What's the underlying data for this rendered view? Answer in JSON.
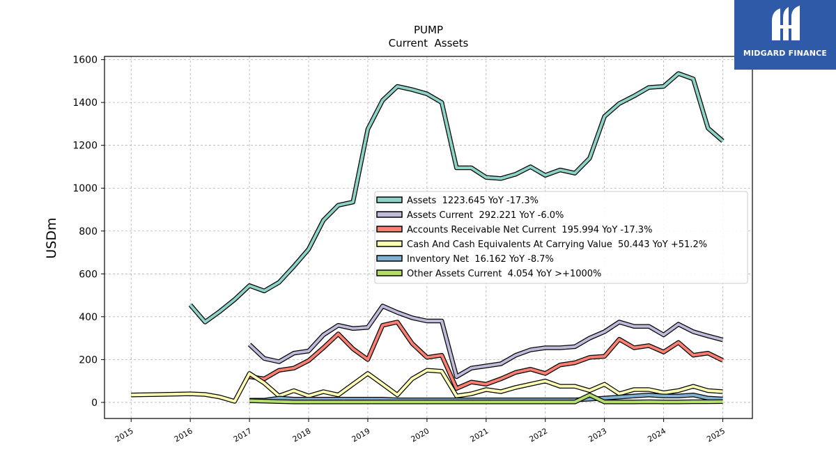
{
  "brand": {
    "name": "MIDGARD FINANCE",
    "icon": "mf-logo-icon",
    "color": "#2f5aa8"
  },
  "chart_data": {
    "type": "line",
    "title": "PUMP",
    "subtitle": "Current  Assets",
    "ylabel": "USDm",
    "xlabel": "",
    "xlim": [
      2014.55,
      2025.5
    ],
    "ylim": [
      -75,
      1615
    ],
    "yticks": [
      0,
      200,
      400,
      600,
      800,
      1000,
      1200,
      1400,
      1600
    ],
    "xticks": [
      2015,
      2016,
      2017,
      2018,
      2019,
      2020,
      2021,
      2022,
      2023,
      2024,
      2025
    ],
    "grid": true,
    "legend_position": "center-right",
    "series": [
      {
        "name": "Assets",
        "legend": "Assets  1223.645 YoY -17.3%",
        "color": "#8dd3c7",
        "points": [
          [
            2016.0,
            455
          ],
          [
            2016.25,
            375
          ],
          [
            2016.5,
            425
          ],
          [
            2016.75,
            480
          ],
          [
            2017.0,
            545
          ],
          [
            2017.25,
            520
          ],
          [
            2017.5,
            560
          ],
          [
            2017.75,
            635
          ],
          [
            2018.0,
            715
          ],
          [
            2018.25,
            850
          ],
          [
            2018.5,
            920
          ],
          [
            2018.75,
            935
          ],
          [
            2019.0,
            1275
          ],
          [
            2019.25,
            1410
          ],
          [
            2019.5,
            1475
          ],
          [
            2019.75,
            1460
          ],
          [
            2020.0,
            1440
          ],
          [
            2020.25,
            1400
          ],
          [
            2020.5,
            1095
          ],
          [
            2020.75,
            1095
          ],
          [
            2021.0,
            1050
          ],
          [
            2021.25,
            1045
          ],
          [
            2021.5,
            1065
          ],
          [
            2021.75,
            1100
          ],
          [
            2022.0,
            1060
          ],
          [
            2022.25,
            1085
          ],
          [
            2022.5,
            1070
          ],
          [
            2022.75,
            1140
          ],
          [
            2023.0,
            1335
          ],
          [
            2023.25,
            1395
          ],
          [
            2023.5,
            1430
          ],
          [
            2023.75,
            1470
          ],
          [
            2024.0,
            1475
          ],
          [
            2024.25,
            1535
          ],
          [
            2024.5,
            1510
          ],
          [
            2024.75,
            1280
          ],
          [
            2025.0,
            1220
          ]
        ]
      },
      {
        "name": "Assets Current",
        "legend": "Assets Current  292.221 YoY -6.0%",
        "color": "#bebada",
        "points": [
          [
            2017.0,
            270
          ],
          [
            2017.25,
            205
          ],
          [
            2017.5,
            190
          ],
          [
            2017.75,
            230
          ],
          [
            2018.0,
            240
          ],
          [
            2018.25,
            315
          ],
          [
            2018.5,
            360
          ],
          [
            2018.75,
            345
          ],
          [
            2019.0,
            350
          ],
          [
            2019.25,
            450
          ],
          [
            2019.5,
            420
          ],
          [
            2019.75,
            395
          ],
          [
            2020.0,
            380
          ],
          [
            2020.25,
            380
          ],
          [
            2020.5,
            120
          ],
          [
            2020.75,
            160
          ],
          [
            2021.0,
            170
          ],
          [
            2021.25,
            180
          ],
          [
            2021.5,
            220
          ],
          [
            2021.75,
            245
          ],
          [
            2022.0,
            255
          ],
          [
            2022.25,
            255
          ],
          [
            2022.5,
            260
          ],
          [
            2022.75,
            300
          ],
          [
            2023.0,
            330
          ],
          [
            2023.25,
            375
          ],
          [
            2023.5,
            355
          ],
          [
            2023.75,
            355
          ],
          [
            2024.0,
            315
          ],
          [
            2024.25,
            365
          ],
          [
            2024.5,
            330
          ],
          [
            2024.75,
            310
          ],
          [
            2025.0,
            292
          ]
        ]
      },
      {
        "name": "Accounts Receivable Net Current",
        "legend": "Accounts Receivable Net Current  195.994 YoY -17.3%",
        "color": "#fb8072",
        "points": [
          [
            2017.0,
            120
          ],
          [
            2017.25,
            110
          ],
          [
            2017.5,
            150
          ],
          [
            2017.75,
            160
          ],
          [
            2018.0,
            195
          ],
          [
            2018.25,
            255
          ],
          [
            2018.5,
            320
          ],
          [
            2018.75,
            250
          ],
          [
            2019.0,
            200
          ],
          [
            2019.25,
            360
          ],
          [
            2019.5,
            375
          ],
          [
            2019.75,
            275
          ],
          [
            2020.0,
            210
          ],
          [
            2020.25,
            220
          ],
          [
            2020.5,
            65
          ],
          [
            2020.75,
            95
          ],
          [
            2021.0,
            85
          ],
          [
            2021.25,
            110
          ],
          [
            2021.5,
            140
          ],
          [
            2021.75,
            155
          ],
          [
            2022.0,
            135
          ],
          [
            2022.25,
            175
          ],
          [
            2022.5,
            185
          ],
          [
            2022.75,
            210
          ],
          [
            2023.0,
            215
          ],
          [
            2023.25,
            295
          ],
          [
            2023.5,
            255
          ],
          [
            2023.75,
            265
          ],
          [
            2024.0,
            235
          ],
          [
            2024.25,
            280
          ],
          [
            2024.5,
            220
          ],
          [
            2024.75,
            230
          ],
          [
            2025.0,
            196
          ]
        ]
      },
      {
        "name": "Cash And Cash Equivalents At Carrying Value",
        "legend": "Cash And Cash Equivalents At Carrying Value  50.443 YoY +51.2%",
        "color": "#ffffb3",
        "points": [
          [
            2015.0,
            35
          ],
          [
            2015.5,
            37
          ],
          [
            2016.0,
            40
          ],
          [
            2016.25,
            37
          ],
          [
            2016.5,
            25
          ],
          [
            2016.75,
            5
          ],
          [
            2017.0,
            135
          ],
          [
            2017.25,
            90
          ],
          [
            2017.5,
            30
          ],
          [
            2017.75,
            55
          ],
          [
            2018.0,
            30
          ],
          [
            2018.25,
            50
          ],
          [
            2018.5,
            35
          ],
          [
            2018.75,
            85
          ],
          [
            2019.0,
            135
          ],
          [
            2019.25,
            85
          ],
          [
            2019.5,
            35
          ],
          [
            2019.75,
            110
          ],
          [
            2020.0,
            150
          ],
          [
            2020.25,
            145
          ],
          [
            2020.5,
            30
          ],
          [
            2020.75,
            40
          ],
          [
            2021.0,
            60
          ],
          [
            2021.25,
            50
          ],
          [
            2021.5,
            70
          ],
          [
            2021.75,
            85
          ],
          [
            2022.0,
            100
          ],
          [
            2022.25,
            75
          ],
          [
            2022.5,
            75
          ],
          [
            2022.75,
            55
          ],
          [
            2023.0,
            85
          ],
          [
            2023.25,
            40
          ],
          [
            2023.5,
            60
          ],
          [
            2023.75,
            60
          ],
          [
            2024.0,
            45
          ],
          [
            2024.25,
            55
          ],
          [
            2024.5,
            75
          ],
          [
            2024.75,
            55
          ],
          [
            2025.0,
            50
          ]
        ]
      },
      {
        "name": "Inventory Net",
        "legend": "Inventory Net  16.162 YoY -8.7%",
        "color": "#80b1d3",
        "points": [
          [
            2017.0,
            10
          ],
          [
            2017.25,
            10
          ],
          [
            2017.5,
            20
          ],
          [
            2017.75,
            15
          ],
          [
            2018.0,
            15
          ],
          [
            2018.25,
            15
          ],
          [
            2018.5,
            15
          ],
          [
            2018.75,
            15
          ],
          [
            2019.0,
            15
          ],
          [
            2019.25,
            15
          ],
          [
            2019.5,
            12
          ],
          [
            2019.75,
            12
          ],
          [
            2020.0,
            12
          ],
          [
            2020.25,
            12
          ],
          [
            2020.5,
            12
          ],
          [
            2020.75,
            12
          ],
          [
            2021.0,
            12
          ],
          [
            2021.25,
            12
          ],
          [
            2021.5,
            12
          ],
          [
            2021.75,
            12
          ],
          [
            2022.0,
            12
          ],
          [
            2022.25,
            12
          ],
          [
            2022.5,
            12
          ],
          [
            2022.75,
            15
          ],
          [
            2023.0,
            20
          ],
          [
            2023.25,
            25
          ],
          [
            2023.5,
            30
          ],
          [
            2023.75,
            35
          ],
          [
            2024.0,
            30
          ],
          [
            2024.25,
            30
          ],
          [
            2024.5,
            35
          ],
          [
            2024.75,
            20
          ],
          [
            2025.0,
            16
          ]
        ]
      },
      {
        "name": "Other Assets Current",
        "legend": "Other Assets Current  4.054 YoY >+1000%",
        "color": "#b3de69",
        "points": [
          [
            2017.0,
            8
          ],
          [
            2017.25,
            6
          ],
          [
            2017.5,
            4
          ],
          [
            2017.75,
            2
          ],
          [
            2018.0,
            2
          ],
          [
            2018.25,
            2
          ],
          [
            2018.5,
            2
          ],
          [
            2018.75,
            2
          ],
          [
            2019.0,
            2
          ],
          [
            2019.25,
            2
          ],
          [
            2019.5,
            2
          ],
          [
            2019.75,
            2
          ],
          [
            2020.0,
            2
          ],
          [
            2020.25,
            2
          ],
          [
            2020.5,
            2
          ],
          [
            2020.75,
            2
          ],
          [
            2021.0,
            2
          ],
          [
            2021.25,
            2
          ],
          [
            2021.5,
            2
          ],
          [
            2021.75,
            2
          ],
          [
            2022.0,
            2
          ],
          [
            2022.25,
            2
          ],
          [
            2022.5,
            2
          ],
          [
            2022.75,
            35
          ],
          [
            2023.0,
            2
          ],
          [
            2023.25,
            2
          ],
          [
            2023.5,
            2
          ],
          [
            2023.75,
            3
          ],
          [
            2024.0,
            2
          ],
          [
            2024.25,
            2
          ],
          [
            2024.5,
            3
          ],
          [
            2024.75,
            3
          ],
          [
            2025.0,
            4
          ]
        ]
      }
    ]
  }
}
